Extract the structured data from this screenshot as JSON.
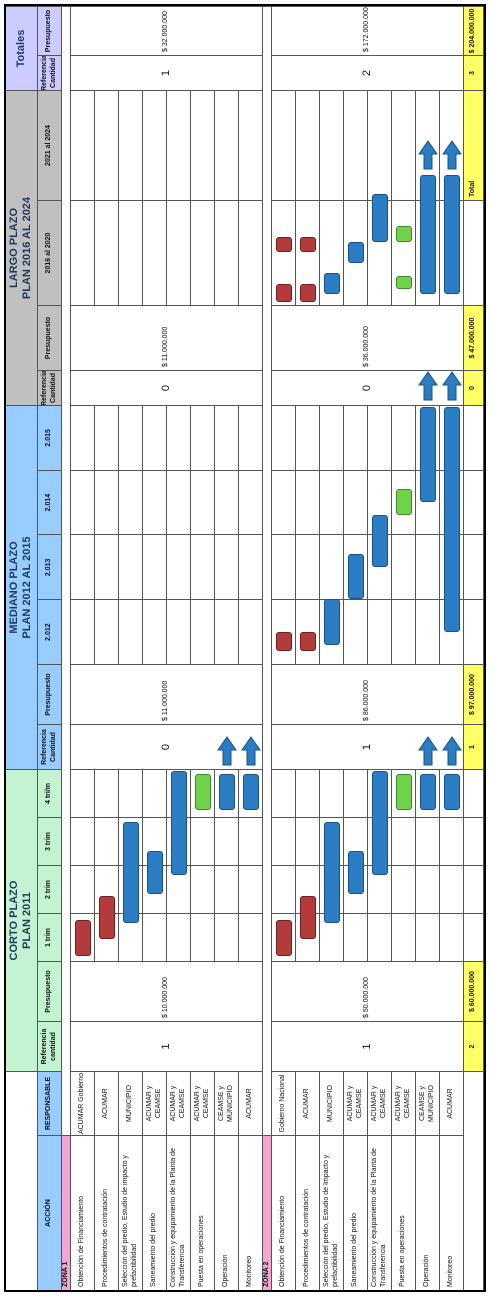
{
  "header": {
    "accion": "ACCIÓN",
    "responsable": "RESPONSABLE"
  },
  "groups": [
    {
      "title": [
        "CORTO PLAZO",
        "PLAN 2011"
      ],
      "columns": [
        "Referencia cantidad",
        "Presupuesto",
        "1 trim",
        "2 trim",
        "3 trim",
        "4 tri/m"
      ]
    },
    {
      "title": [
        "MEDIANO PLAZO",
        "PLAN 2012 AL 2015"
      ],
      "columns": [
        "Referencia Cantidad",
        "Presupuesto",
        "2.012",
        "2.013",
        "2.014",
        "2.015"
      ]
    },
    {
      "title": [
        "LARGO PLAZO",
        "PLAN 2016 AL 2024"
      ],
      "columns": [
        "Referencia Cantidad",
        "Presupuesto",
        "2016 al 2020",
        "2021 al 2024"
      ]
    },
    {
      "title": [
        "Totales"
      ],
      "columns": [
        "Referencia Cantidad",
        "Presupuesto"
      ]
    }
  ],
  "zones": [
    {
      "name": "ZONA 1",
      "rows": [
        {
          "accion": "Obtención de Financiamiento",
          "responsable": "ACUMAR Gobierno"
        },
        {
          "accion": "Procedimientos de contratación",
          "responsable": "ACUMAR"
        },
        {
          "accion": "Selección del predio, Estudio de impacto y prefactibilidad",
          "responsable": "MUNICIPIO"
        },
        {
          "accion": "Saneamiento del predio",
          "responsable": "ACUMAR y CEAMSE"
        },
        {
          "accion": "Construcción y equipamiento de la Planta de Transferencia",
          "responsable": "ACUMAR y CEAMSE"
        },
        {
          "accion": "Puesta en operaciones",
          "responsable": "ACUMAR y CEAMSE"
        },
        {
          "accion": "Operación",
          "responsable": "CEAMSE y MUNICIPIO"
        },
        {
          "accion": "Monitoreo",
          "responsable": "ACUMAR"
        }
      ],
      "summary": [
        {
          "ref": 1,
          "budget": "$ 10.000.000"
        },
        {
          "ref": 0,
          "budget": "$ 11.000.000"
        },
        {
          "ref": 0,
          "budget": "$ 11.000.000"
        },
        {
          "ref": 1,
          "budget": "$ 32.000.000"
        }
      ]
    },
    {
      "name": "ZONA 2",
      "rows": [
        {
          "accion": "Obtención de Financiamiento",
          "responsable": "Gobierno Nacional"
        },
        {
          "accion": "Procedimientos de contratación",
          "responsable": "ACUMAR"
        },
        {
          "accion": "Selección del predio, Estudio de Impacto y prefactibilidad",
          "responsable": "MUNICIPIO"
        },
        {
          "accion": "Saneamiento del predio",
          "responsable": "ACUMAR y CEAMSE"
        },
        {
          "accion": "Construcción y equipamiento de la Planta de Transferencia",
          "responsable": "ACUMAR y CEAMSE"
        },
        {
          "accion": "Puesta en operaciones",
          "responsable": "ACUMAR y CEAMSE"
        },
        {
          "accion": "Operación",
          "responsable": "CEAMSE y MUNICIPIO"
        },
        {
          "accion": "Monitoreo",
          "responsable": "ACUMAR"
        }
      ],
      "summary": [
        {
          "ref": 1,
          "budget": "$ 50.000.000"
        },
        {
          "ref": 1,
          "budget": "$ 86.000.000"
        },
        {
          "ref": 0,
          "budget": "$ 36.000.000"
        },
        {
          "ref": 2,
          "budget": "$ 172.000.000"
        }
      ]
    }
  ],
  "totals": {
    "label": "Total",
    "values": [
      {
        "ref": 2,
        "budget": "$ 60.000.000"
      },
      {
        "ref": 1,
        "budget": "$ 97.000.000"
      },
      {
        "ref": 0,
        "budget": "$ 47.000.000"
      },
      {
        "ref": 3,
        "budget": "$ 204.000.000"
      }
    ]
  }
}
